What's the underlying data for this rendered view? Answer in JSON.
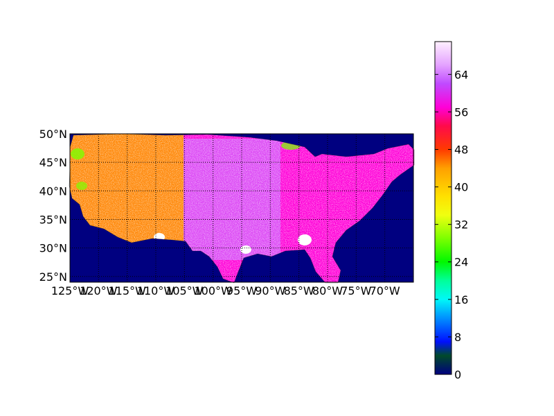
{
  "chart_data": {
    "type": "heatmap",
    "title": "",
    "map_extent": {
      "lon": [
        -125,
        -65
      ],
      "lat": [
        24,
        50
      ]
    },
    "lat_ticks": [
      {
        "value": 50,
        "label": "50°N"
      },
      {
        "value": 45,
        "label": "45°N"
      },
      {
        "value": 40,
        "label": "40°N"
      },
      {
        "value": 35,
        "label": "35°N"
      },
      {
        "value": 30,
        "label": "30°N"
      },
      {
        "value": 25,
        "label": "25°N"
      }
    ],
    "lon_ticks": [
      {
        "value": -125,
        "label": "125°W"
      },
      {
        "value": -120,
        "label": "120°W"
      },
      {
        "value": -115,
        "label": "115°W"
      },
      {
        "value": -110,
        "label": "110°W"
      },
      {
        "value": -105,
        "label": "105°W"
      },
      {
        "value": -100,
        "label": "100°W"
      },
      {
        "value": -95,
        "label": "95°W"
      },
      {
        "value": -90,
        "label": "90°W"
      },
      {
        "value": -85,
        "label": "85°W"
      },
      {
        "value": -80,
        "label": "80°W"
      },
      {
        "value": -75,
        "label": "75°W"
      },
      {
        "value": -70,
        "label": "70°W"
      }
    ],
    "grid": "dotted",
    "background_value": 0,
    "colorbar": {
      "min": 0,
      "max": 71,
      "ticks": [
        0,
        8,
        16,
        24,
        32,
        40,
        48,
        56,
        64
      ],
      "tick_labels": [
        "0",
        "8",
        "16",
        "24",
        "32",
        "40",
        "48",
        "56",
        "64"
      ],
      "colormap": "gist_ncar"
    },
    "regions": [
      {
        "name": "west",
        "lon": [
          -125,
          -103
        ],
        "lat": [
          31,
          50
        ],
        "typical_value": 44
      },
      {
        "name": "central-east",
        "lon": [
          -104,
          -67
        ],
        "lat": [
          25,
          49
        ],
        "typical_value": 60
      },
      {
        "name": "northeast",
        "lon": [
          -90,
          -66
        ],
        "lat": [
          36,
          48
        ],
        "typical_value": 57
      }
    ]
  },
  "colors": {
    "background": "#000080",
    "colormap_stops": [
      {
        "v": 0,
        "c": "#000080"
      },
      {
        "v": 4,
        "c": "#004a2a"
      },
      {
        "v": 7,
        "c": "#0010ff"
      },
      {
        "v": 12,
        "c": "#0090ff"
      },
      {
        "v": 16,
        "c": "#00f8f8"
      },
      {
        "v": 20,
        "c": "#00ff9a"
      },
      {
        "v": 24,
        "c": "#00f800"
      },
      {
        "v": 29,
        "c": "#7cff00"
      },
      {
        "v": 34,
        "c": "#f0ff10"
      },
      {
        "v": 38,
        "c": "#ffe000"
      },
      {
        "v": 44,
        "c": "#ffa000"
      },
      {
        "v": 48,
        "c": "#ff3a00"
      },
      {
        "v": 53,
        "c": "#ff0a4a"
      },
      {
        "v": 57,
        "c": "#ff00d8"
      },
      {
        "v": 62,
        "c": "#c04aff"
      },
      {
        "v": 66,
        "c": "#e4a2ff"
      },
      {
        "v": 71,
        "c": "#fff0ff"
      }
    ]
  }
}
